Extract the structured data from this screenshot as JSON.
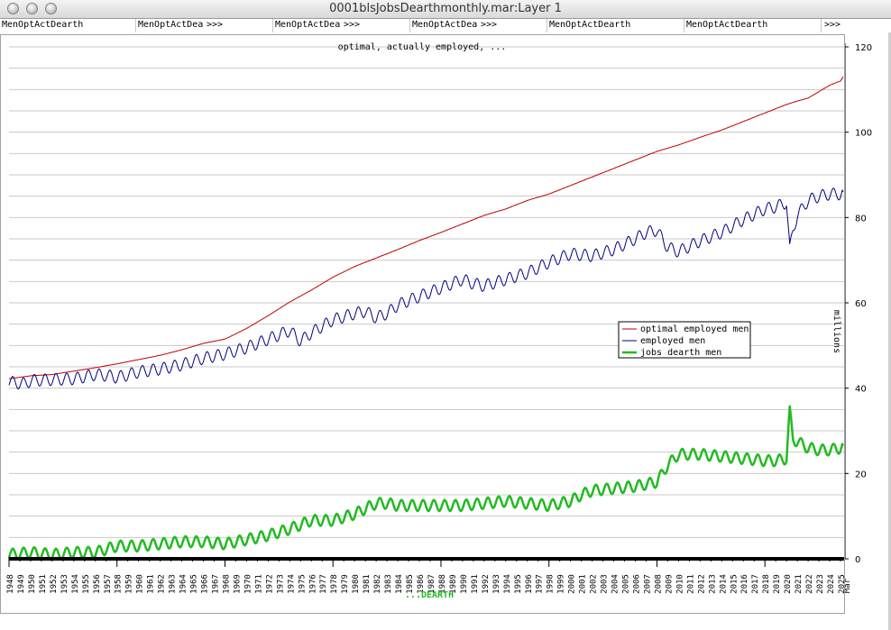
{
  "window": {
    "title": "0001blsJobsDearthmonthly.mar:Layer 1"
  },
  "menus": [
    {
      "label": "MenOptActDearth",
      "more": ""
    },
    {
      "label": "MenOptActDea",
      "more": ">>>"
    },
    {
      "label": "MenOptActDea",
      "more": ">>>"
    },
    {
      "label": "MenOptActDea",
      "more": ">>>"
    },
    {
      "label": "MenOptActDearth",
      "more": ""
    },
    {
      "label": "MenOptActDearth",
      "more": ""
    },
    {
      "label": "",
      "more": ">>>"
    }
  ],
  "colors": {
    "optimal": "#c00000",
    "employed": "#000080",
    "dearth": "#22bb22",
    "grid": "#c8c8c8",
    "xlabel": "#22bb22"
  },
  "chart_data": {
    "type": "line",
    "title": "optimal, actually employed, ...",
    "ylabel": "millions",
    "xlabel": "...DEARTH",
    "ylim": [
      0,
      120
    ],
    "yticks": [
      0,
      20,
      40,
      60,
      80,
      100,
      120
    ],
    "xlim": [
      1948.0,
      2025.25
    ],
    "xtick_labels": [
      "1948",
      "1949",
      "1950",
      "1951",
      "1952",
      "1953",
      "1954",
      "1955",
      "1956",
      "1957",
      "1958",
      "1959",
      "1960",
      "1961",
      "1962",
      "1963",
      "1964",
      "1965",
      "1966",
      "1967",
      "1968",
      "1969",
      "1970",
      "1971",
      "1972",
      "1973",
      "1974",
      "1975",
      "1976",
      "1977",
      "1978",
      "1979",
      "1980",
      "1981",
      "1982",
      "1983",
      "1984",
      "1985",
      "1986",
      "1987",
      "1988",
      "1989",
      "1990",
      "1991",
      "1992",
      "1993",
      "1994",
      "1995",
      "1996",
      "1997",
      "1998",
      "1999",
      "2000",
      "2001",
      "2002",
      "2003",
      "2004",
      "2005",
      "2006",
      "2007",
      "2008",
      "2009",
      "2010",
      "2011",
      "2012",
      "2013",
      "2014",
      "2015",
      "2016",
      "2017",
      "2018",
      "2019",
      "2020",
      "2021",
      "2022",
      "2023",
      "2024",
      "2025",
      "Mar"
    ],
    "legend_position": "right",
    "grid": true,
    "series": [
      {
        "name": "optimal employed men",
        "x": [
          1948,
          1950,
          1952,
          1954,
          1956,
          1958,
          1960,
          1962,
          1964,
          1966,
          1968,
          1970,
          1972,
          1974,
          1976,
          1978,
          1980,
          1982,
          1984,
          1986,
          1988,
          1990,
          1992,
          1994,
          1996,
          1998,
          2000,
          2002,
          2004,
          2006,
          2008,
          2010,
          2012,
          2014,
          2016,
          2018,
          2020,
          2021,
          2022,
          2023,
          2024,
          2025,
          2025.25
        ],
        "values": [
          42.2,
          42.9,
          43.2,
          44.0,
          44.8,
          45.7,
          46.7,
          47.7,
          49.0,
          50.5,
          51.5,
          54.0,
          57.0,
          60.2,
          63.0,
          66.0,
          68.5,
          70.5,
          72.5,
          74.6,
          76.5,
          78.5,
          80.5,
          82.0,
          84.0,
          85.5,
          87.5,
          89.5,
          91.5,
          93.5,
          95.5,
          97.0,
          98.8,
          100.5,
          102.5,
          104.5,
          106.5,
          107.3,
          108.0,
          109.5,
          111.0,
          112.0,
          113.0
        ]
      },
      {
        "name": "employed men",
        "x": [
          1948,
          1949.5,
          1950,
          1952,
          1954,
          1956,
          1957,
          1958,
          1960,
          1962,
          1964,
          1966,
          1968,
          1970,
          1972,
          1974,
          1975,
          1976,
          1978,
          1980,
          1981,
          1982,
          1983,
          1984,
          1986,
          1988,
          1990,
          1991,
          1992,
          1994,
          1996,
          1998,
          2000,
          2002,
          2004,
          2006,
          2007,
          2008,
          2009,
          2010,
          2012,
          2014,
          2016,
          2018,
          2019,
          2020,
          2020.3,
          2020.6,
          2021,
          2022,
          2023,
          2024,
          2025,
          2025.25
        ],
        "values": [
          41.5,
          41.0,
          41.8,
          42.0,
          42.2,
          43.2,
          43.0,
          42.5,
          43.8,
          44.5,
          45.5,
          47.0,
          48.0,
          49.5,
          51.5,
          53.5,
          51.0,
          53.0,
          56.0,
          57.5,
          58.0,
          56.5,
          57.5,
          59.5,
          61.5,
          63.5,
          65.5,
          64.5,
          64.0,
          65.5,
          67.0,
          69.5,
          71.5,
          71.0,
          72.5,
          75.0,
          76.5,
          77.0,
          73.0,
          72.0,
          74.5,
          76.5,
          79.5,
          82.0,
          82.5,
          83.5,
          72.5,
          77.0,
          80.5,
          84.0,
          85.0,
          85.5,
          85.5,
          86.0
        ]
      },
      {
        "name": "jobs dearth men",
        "x": [
          1948,
          1950,
          1952,
          1954,
          1956,
          1958,
          1960,
          1962,
          1964,
          1966,
          1968,
          1970,
          1972,
          1974,
          1976,
          1978,
          1980,
          1982,
          1983,
          1984,
          1986,
          1988,
          1990,
          1992,
          1994,
          1996,
          1998,
          2000,
          2001,
          2002,
          2004,
          2006,
          2007,
          2008,
          2009,
          2010,
          2012,
          2014,
          2016,
          2018,
          2019,
          2020,
          2020.3,
          2020.6,
          2021,
          2022,
          2023,
          2024,
          2025,
          2025.25
        ],
        "values": [
          1.0,
          1.5,
          1.0,
          1.5,
          1.5,
          3.0,
          3.0,
          3.5,
          4.0,
          4.0,
          3.5,
          4.5,
          5.5,
          7.0,
          9.0,
          9.0,
          10.5,
          13.0,
          13.0,
          12.5,
          12.5,
          12.5,
          12.5,
          13.0,
          13.5,
          13.0,
          12.5,
          13.5,
          15.0,
          16.0,
          16.5,
          17.0,
          17.5,
          18.0,
          22.0,
          24.5,
          24.5,
          24.0,
          23.5,
          23.0,
          23.0,
          23.5,
          34.5,
          28.0,
          27.5,
          26.0,
          25.5,
          25.5,
          26.0,
          26.5
        ]
      }
    ]
  }
}
